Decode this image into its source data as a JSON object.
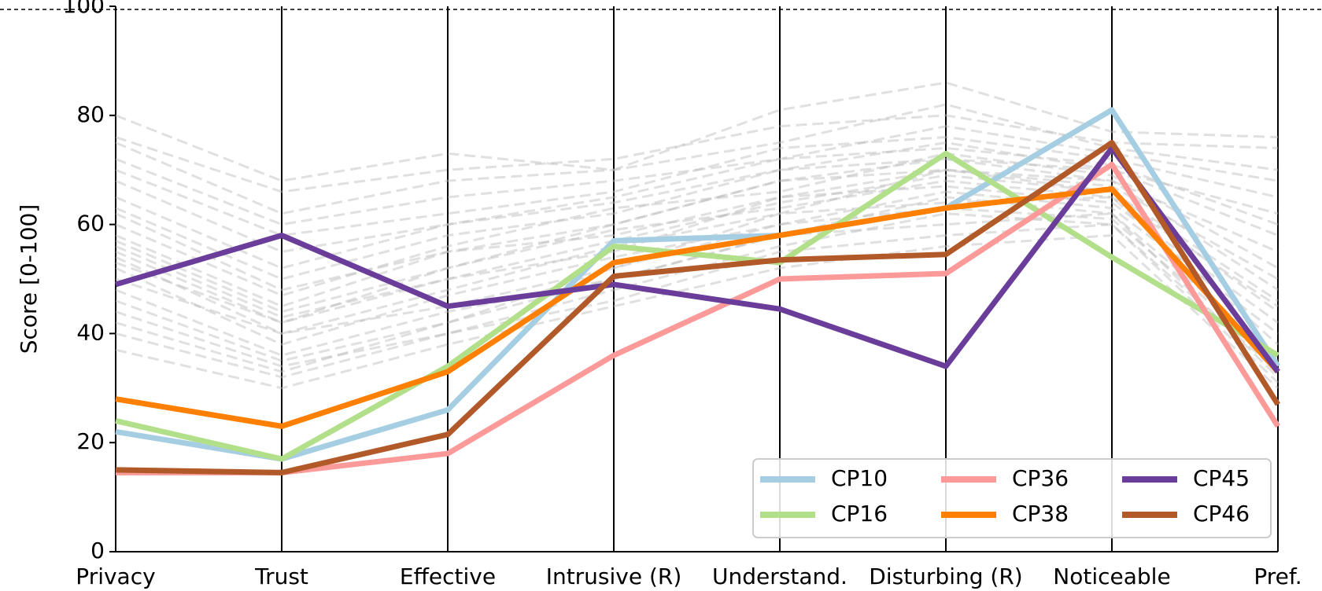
{
  "chart_data": {
    "type": "parallel",
    "y_label": "Score [0-100]",
    "categories": [
      "Privacy",
      "Trust",
      "Effective",
      "Intrusive (R)",
      "Understand.",
      "Disturbing (R)",
      "Noticeable",
      "Pref."
    ],
    "ylim": [
      0,
      100
    ],
    "yticks": [
      0,
      20,
      40,
      60,
      80,
      100
    ],
    "legend": "lower right",
    "background_color": "#bbbbbb",
    "background_series": [
      [
        80,
        68,
        73,
        70,
        81,
        86,
        77,
        76
      ],
      [
        76,
        66,
        70,
        72,
        78,
        80,
        75,
        74
      ],
      [
        75,
        62,
        68,
        70,
        75,
        82,
        74,
        70
      ],
      [
        72,
        60,
        65,
        68,
        72,
        78,
        73,
        68
      ],
      [
        70,
        58,
        62,
        66,
        74,
        76,
        72,
        65
      ],
      [
        68,
        55,
        60,
        64,
        70,
        75,
        70,
        62
      ],
      [
        65,
        52,
        60,
        65,
        72,
        74,
        71,
        60
      ],
      [
        63,
        50,
        58,
        62,
        70,
        72,
        70,
        58
      ],
      [
        62,
        48,
        55,
        60,
        68,
        70,
        68,
        55
      ],
      [
        60,
        47,
        56,
        63,
        66,
        73,
        69,
        52
      ],
      [
        58,
        45,
        55,
        58,
        65,
        70,
        67,
        50
      ],
      [
        57,
        44,
        52,
        60,
        68,
        72,
        68,
        48
      ],
      [
        56,
        43,
        50,
        57,
        64,
        69,
        66,
        46
      ],
      [
        55,
        42,
        52,
        59,
        63,
        68,
        65,
        45
      ],
      [
        54,
        40,
        48,
        56,
        62,
        70,
        66,
        44
      ],
      [
        53,
        42,
        50,
        55,
        65,
        67,
        64,
        42
      ],
      [
        52,
        38,
        47,
        54,
        60,
        66,
        63,
        40
      ],
      [
        50,
        40,
        45,
        52,
        62,
        64,
        65,
        38
      ],
      [
        48,
        36,
        44,
        50,
        58,
        65,
        62,
        36
      ],
      [
        46,
        35,
        42,
        52,
        60,
        63,
        61,
        35
      ],
      [
        44,
        34,
        40,
        48,
        56,
        62,
        60,
        33
      ],
      [
        42,
        33,
        42,
        50,
        58,
        60,
        62,
        32
      ],
      [
        40,
        32,
        40,
        46,
        55,
        58,
        60,
        31
      ],
      [
        37,
        30,
        38,
        45,
        52,
        56,
        58,
        30
      ]
    ],
    "series": [
      {
        "name": "CP10",
        "color": "#a6cee3",
        "values": [
          22,
          17,
          26,
          57,
          58,
          63,
          81,
          34
        ]
      },
      {
        "name": "CP16",
        "color": "#b2df8a",
        "values": [
          24,
          17,
          34,
          56,
          53,
          73,
          54,
          36
        ]
      },
      {
        "name": "CP36",
        "color": "#fb9a99",
        "values": [
          14.5,
          14.5,
          18,
          36,
          50,
          51,
          71,
          23
        ]
      },
      {
        "name": "CP38",
        "color": "#ff7f00",
        "values": [
          28,
          23,
          33,
          53,
          58,
          63,
          66.5,
          33
        ]
      },
      {
        "name": "CP45",
        "color": "#6a3d9a",
        "values": [
          49,
          58,
          45,
          49,
          44.5,
          34,
          74,
          33
        ]
      },
      {
        "name": "CP46",
        "color": "#b15928",
        "values": [
          15,
          14.5,
          21.5,
          50.5,
          53.5,
          54.5,
          75,
          27
        ]
      }
    ]
  }
}
